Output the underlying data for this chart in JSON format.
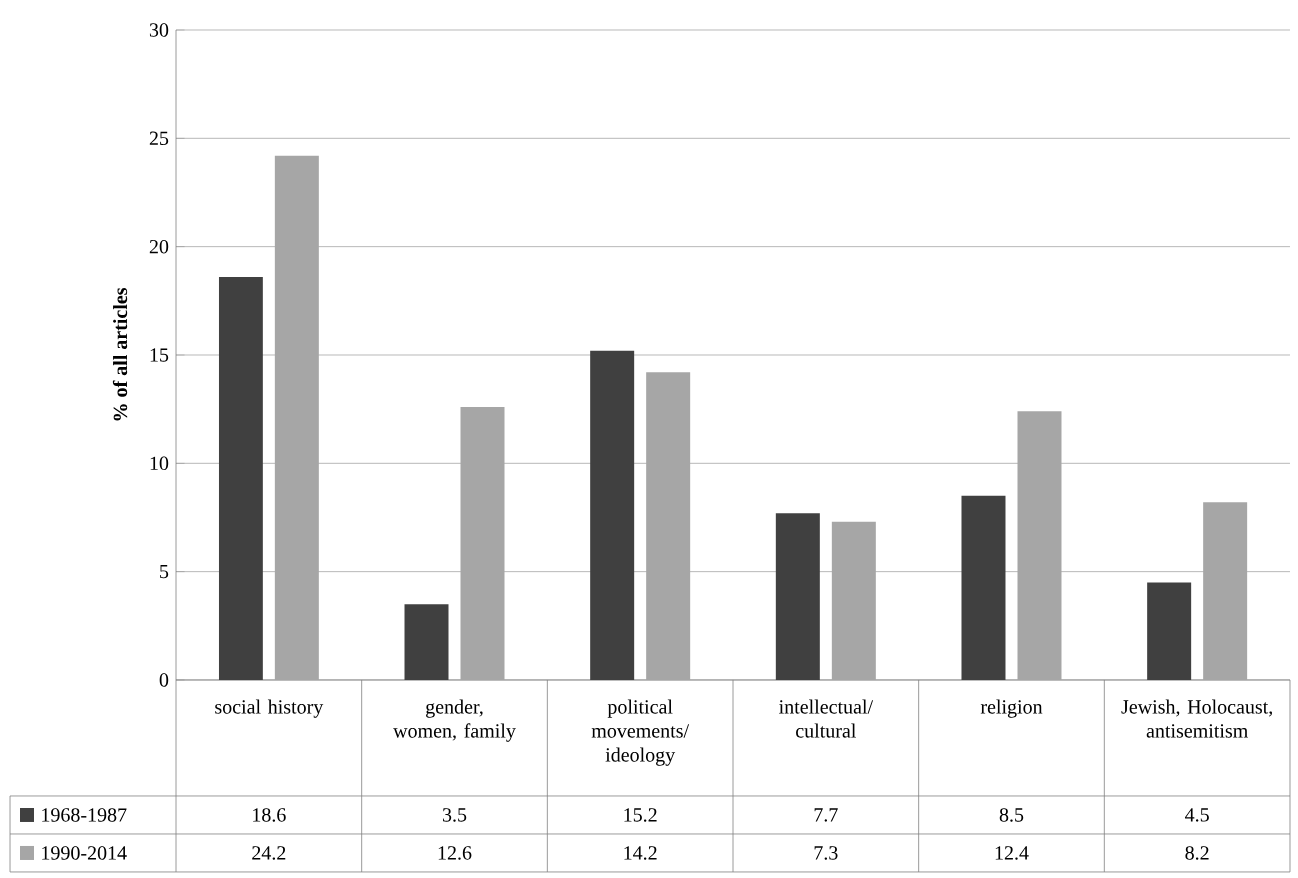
{
  "chart_data": {
    "type": "bar",
    "ylabel": "% of all articles",
    "categories": [
      "social history",
      "gender, women, family",
      "political movements/ ideology",
      "intellectual/ cultural",
      "religion",
      "Jewish, Holocaust, antisemitism"
    ],
    "series": [
      {
        "name": "1968-1987",
        "color": "#404040",
        "values": [
          18.6,
          3.5,
          15.2,
          7.7,
          8.5,
          4.5
        ]
      },
      {
        "name": "1990-2014",
        "color": "#a6a6a6",
        "values": [
          24.2,
          12.6,
          14.2,
          7.3,
          12.4,
          8.2
        ]
      }
    ],
    "ylim": [
      0,
      30
    ],
    "yticks": [
      0,
      5,
      10,
      15,
      20,
      25,
      30
    ],
    "grid": "y",
    "legend": "bottom",
    "data_labels": true
  }
}
